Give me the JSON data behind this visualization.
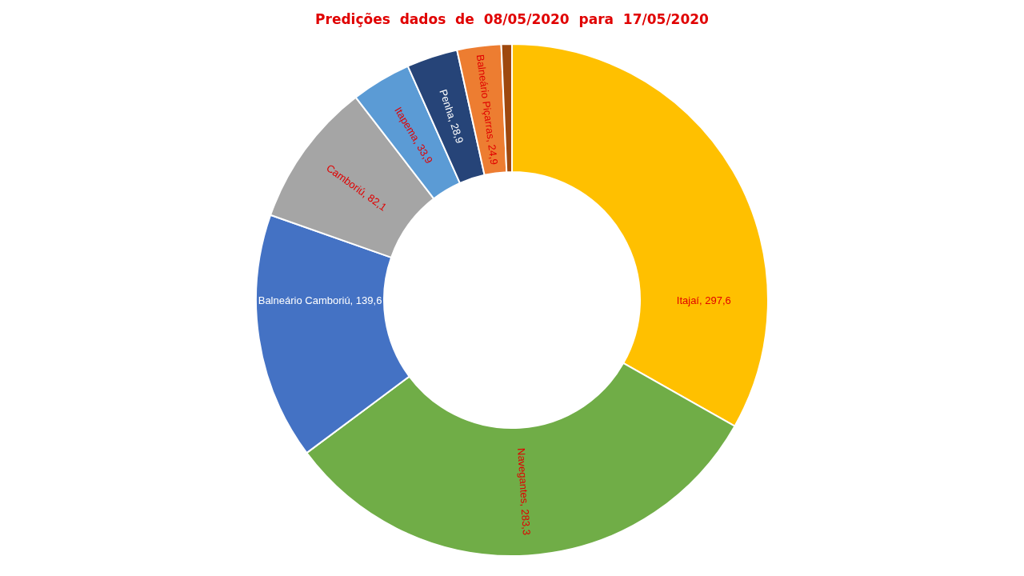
{
  "chart_data": {
    "type": "donut",
    "title": "Predições  dados  de  08/05/2020  para  17/05/2020",
    "categories": [
      "Itajaí",
      "Navegantes",
      "Balneário Camboriú",
      "Camboriú",
      "Itapema",
      "Penha",
      "Balneário Piçarras",
      null
    ],
    "values": [
      297.6,
      283.3,
      139.6,
      82.1,
      33.9,
      28.9,
      24.9,
      6
    ],
    "value_labels": [
      "297,6",
      "283,3",
      "139,6",
      "82,1",
      "33,9",
      "28,9",
      "24,9",
      null
    ],
    "colors": [
      "#ffc000",
      "#70ad47",
      "#4472c4",
      "#a5a5a5",
      "#5b9bd5",
      "#264478",
      "#ed7d31",
      "#9e480e"
    ],
    "legend": false
  }
}
